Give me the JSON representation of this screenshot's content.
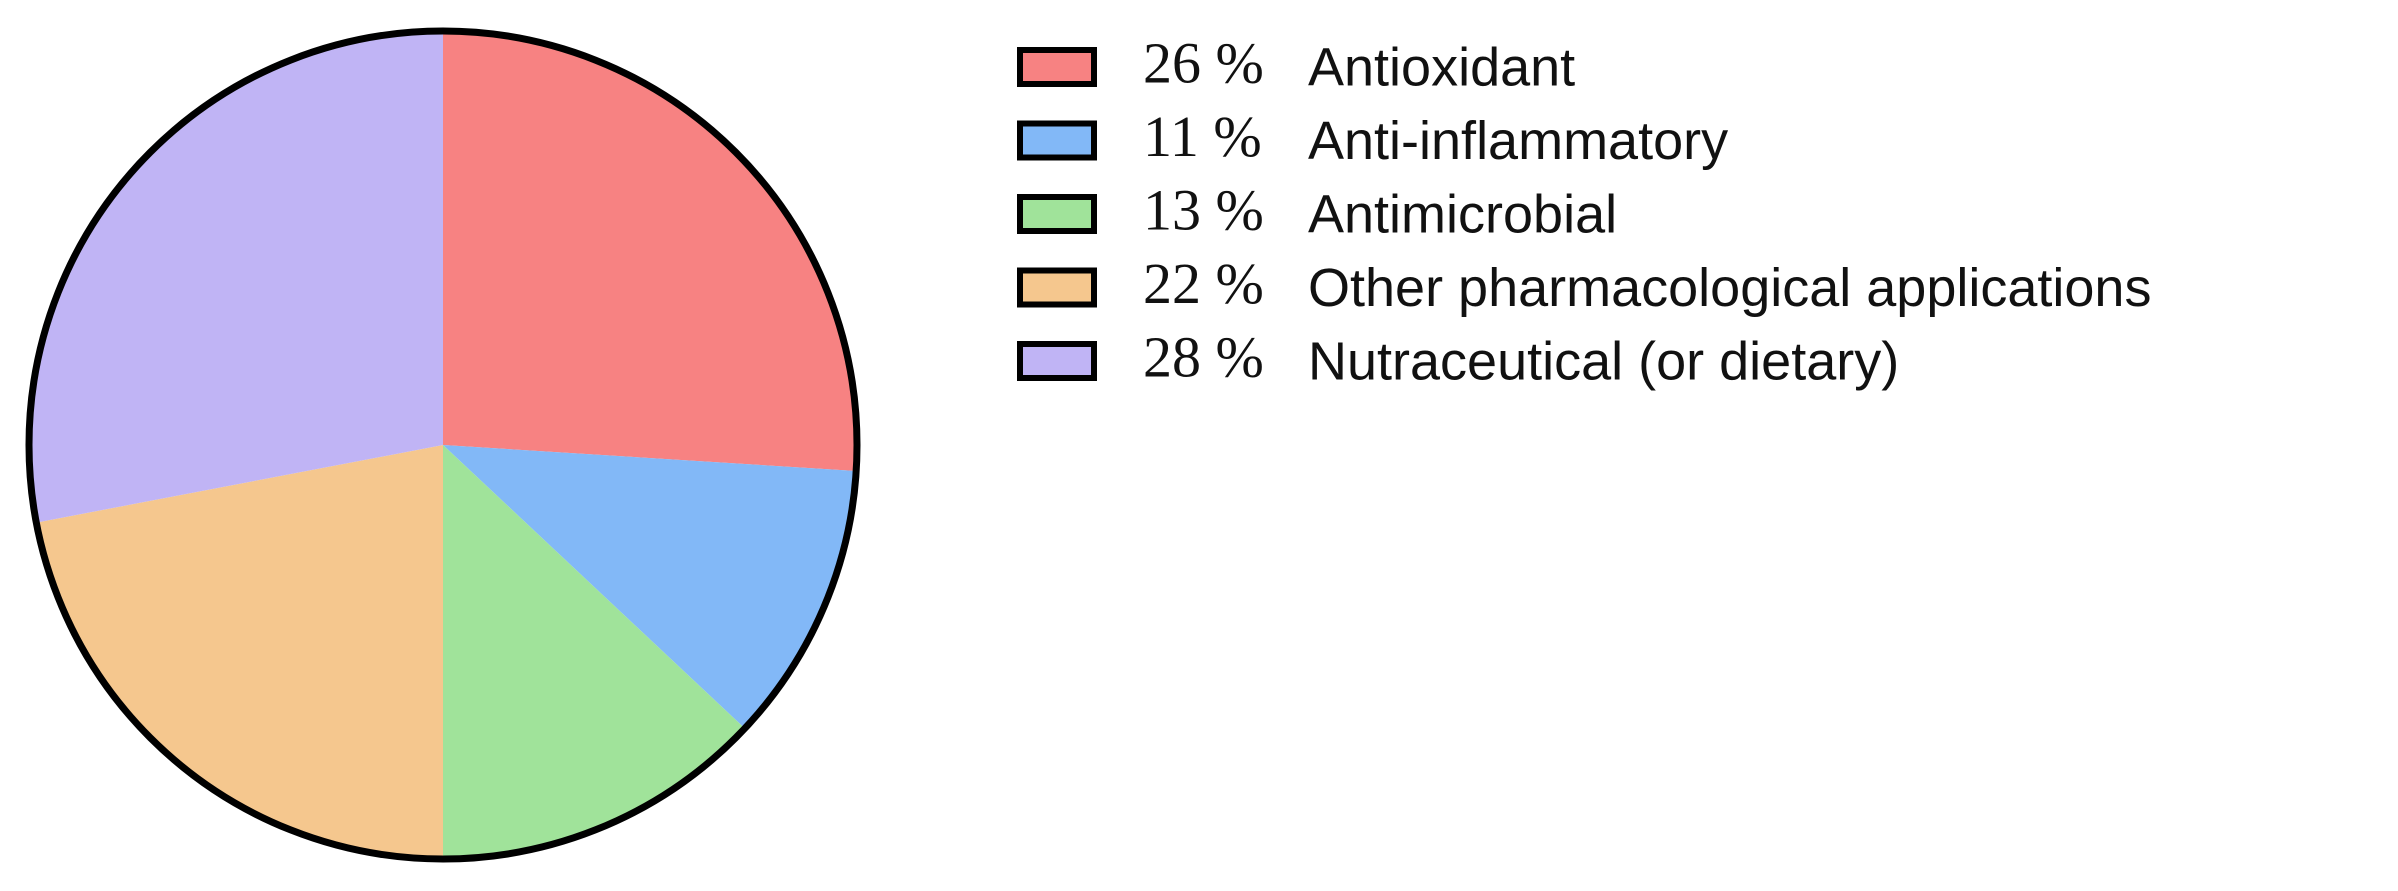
{
  "chart_data": {
    "type": "pie",
    "categories": [
      "Antioxidant",
      "Anti-inflammatory",
      "Antimicrobial",
      "Other pharmacological applications",
      "Nutraceutical (or dietary)"
    ],
    "values": [
      26,
      11,
      13,
      22,
      28
    ],
    "value_labels": [
      "26 %",
      "11 %",
      "13 %",
      "22 %",
      "28 %"
    ],
    "colors": [
      "#f78282",
      "#82b8f7",
      "#a0e39a",
      "#f5c78e",
      "#c0b4f5"
    ],
    "legend": "right"
  }
}
